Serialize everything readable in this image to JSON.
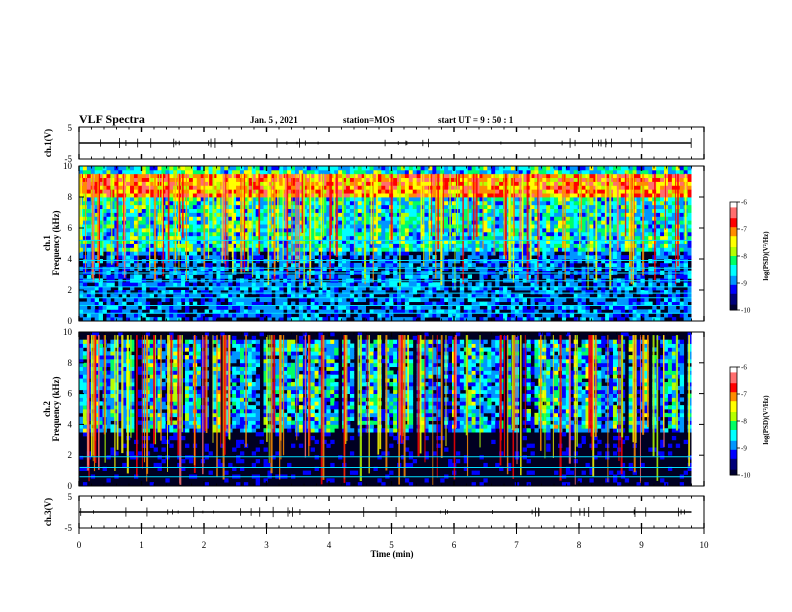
{
  "header": {
    "title": "VLF Spectra",
    "date": "Jan. 5 , 2021",
    "station": "station=MOS",
    "start": "start  UT =   9  : 50 : 1"
  },
  "chart_data": [
    {
      "type": "line",
      "name": "ch1-waveform",
      "ylabel": "ch.1(V)",
      "ylim": [
        -5,
        5
      ],
      "y_ticks": [
        "5",
        "-5"
      ],
      "xlim": [
        0,
        10
      ],
      "series": [
        {
          "name": "ch.1",
          "x": [
            0,
            9.8
          ],
          "values": [
            0,
            0
          ]
        }
      ]
    },
    {
      "type": "heatmap",
      "name": "ch1-spectrogram",
      "ylabel": "ch.1",
      "ylabel2": "Frequency (kHz)",
      "ylim": [
        0,
        10
      ],
      "y_ticks": [
        "0",
        "2",
        "4",
        "6",
        "8",
        "10"
      ],
      "xlim": [
        0,
        10
      ],
      "data_end_min": 9.8,
      "description_band_khz": [
        8.0,
        9.2
      ],
      "narrowband_lines_khz": [
        0.5,
        1.0,
        1.5,
        1.8,
        2.2,
        2.6,
        3.1,
        3.4,
        3.9,
        5.2
      ],
      "colorbar": {
        "label": "log(PSD)(V²/Hz)",
        "range": [
          -10,
          -6
        ],
        "ticks": [
          "-6",
          "-7",
          "-8",
          "-9",
          "-10"
        ]
      }
    },
    {
      "type": "heatmap",
      "name": "ch2-spectrogram",
      "ylabel": "ch.2",
      "ylabel2": "Frequency (kHz)",
      "ylim": [
        0,
        10
      ],
      "y_ticks": [
        "0",
        "2",
        "4",
        "6",
        "8",
        "10"
      ],
      "xlim": [
        0,
        10
      ],
      "data_end_min": 9.8,
      "narrowband_lines_khz": [
        0.6,
        1.2,
        1.9
      ],
      "colorbar": {
        "label": "log(PSD)(V²/Hz)",
        "range": [
          -10,
          -6
        ],
        "ticks": [
          "-6",
          "-7",
          "-8",
          "-9",
          "-10"
        ]
      }
    },
    {
      "type": "line",
      "name": "ch3-waveform",
      "ylabel": "ch.3(V)",
      "ylim": [
        -5,
        5
      ],
      "y_ticks": [
        "5",
        "-5"
      ],
      "xlim": [
        0,
        10
      ],
      "series": [
        {
          "name": "ch.3",
          "x": [
            0,
            9.8
          ],
          "values": [
            0,
            0
          ]
        }
      ]
    }
  ],
  "x_axis": {
    "label": "Time  (min)",
    "ticks": [
      "0",
      "1",
      "2",
      "3",
      "4",
      "5",
      "6",
      "7",
      "8",
      "9",
      "10"
    ]
  },
  "colors": {
    "background": "#000022",
    "cmap": [
      "#000033",
      "#00007a",
      "#0000ff",
      "#0096ff",
      "#00ffff",
      "#00ff64",
      "#b4ff00",
      "#ffff00",
      "#ff8c00",
      "#ff0000",
      "#ff6e6e",
      "#ffffff"
    ]
  }
}
